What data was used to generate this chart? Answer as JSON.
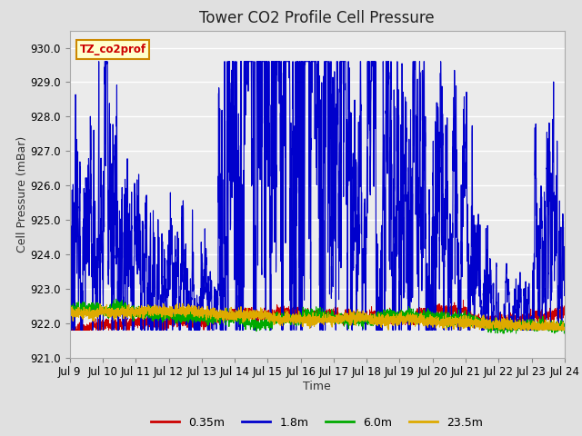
{
  "title": "Tower CO2 Profile Cell Pressure",
  "xlabel": "Time",
  "ylabel": "Cell Pressure (mBar)",
  "ylim": [
    921.0,
    930.5
  ],
  "yticks": [
    921.0,
    922.0,
    923.0,
    924.0,
    925.0,
    926.0,
    927.0,
    928.0,
    929.0,
    930.0
  ],
  "x_tick_labels": [
    "Jul 9",
    "Jul 10",
    "Jul 11",
    "Jul 12",
    "Jul 13",
    "Jul 14",
    "Jul 15",
    "Jul 16",
    "Jul 17",
    "Jul 18",
    "Jul 19",
    "Jul 20",
    "Jul 21",
    "Jul 22",
    "Jul 23",
    "Jul 24"
  ],
  "legend_labels": [
    "0.35m",
    "1.8m",
    "6.0m",
    "23.5m"
  ],
  "legend_colors": [
    "#cc0000",
    "#0000cc",
    "#00aa00",
    "#ddaa00"
  ],
  "annotation_text": "TZ_co2prof",
  "annotation_bg": "#ffffcc",
  "annotation_border": "#cc8800",
  "fig_bg": "#e0e0e0",
  "plot_bg": "#ebebeb",
  "grid_color": "#ffffff",
  "title_fontsize": 12,
  "label_fontsize": 9,
  "tick_fontsize": 8.5
}
